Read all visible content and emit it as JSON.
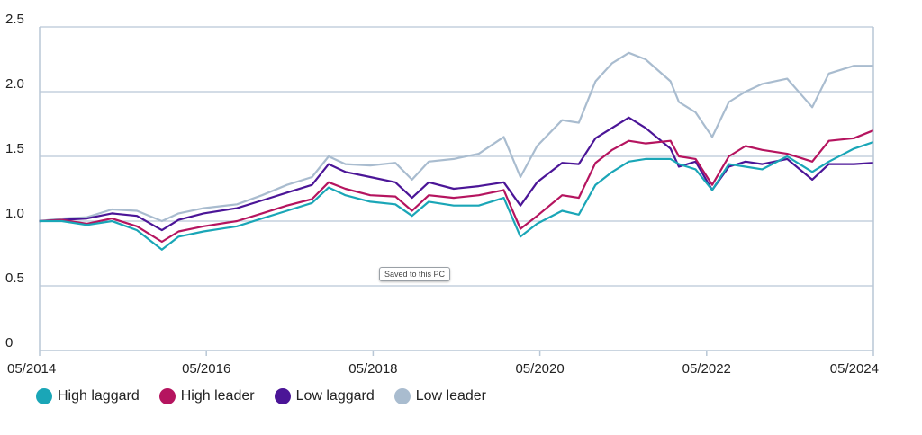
{
  "chart_data": {
    "type": "line",
    "title": "",
    "xlabel": "",
    "ylabel": "",
    "ylim": [
      0,
      2.5
    ],
    "yticks": [
      "0",
      "0.5",
      "1.0",
      "1.5",
      "2.0",
      "2.5"
    ],
    "ytick_values": [
      0,
      0.5,
      1.0,
      1.5,
      2.0,
      2.5
    ],
    "xlim": [
      2014.333,
      2024.333
    ],
    "xticks": [
      "05/2014",
      "05/2016",
      "05/2018",
      "05/2020",
      "05/2022",
      "05/2024"
    ],
    "xtick_values": [
      2014.333,
      2016.333,
      2018.333,
      2020.333,
      2022.333,
      2024.333
    ],
    "grid": "horizontal",
    "legend_position": "bottom-left",
    "series": [
      {
        "name": "Low leader",
        "color": "#a9bccf",
        "points": [
          [
            2014.33,
            1.0
          ],
          [
            2014.6,
            1.02
          ],
          [
            2014.9,
            1.03
          ],
          [
            2015.2,
            1.09
          ],
          [
            2015.5,
            1.08
          ],
          [
            2015.8,
            1.0
          ],
          [
            2016.0,
            1.06
          ],
          [
            2016.3,
            1.1
          ],
          [
            2016.7,
            1.13
          ],
          [
            2017.0,
            1.2
          ],
          [
            2017.3,
            1.28
          ],
          [
            2017.6,
            1.34
          ],
          [
            2017.8,
            1.5
          ],
          [
            2018.0,
            1.44
          ],
          [
            2018.3,
            1.43
          ],
          [
            2018.6,
            1.45
          ],
          [
            2018.8,
            1.32
          ],
          [
            2019.0,
            1.46
          ],
          [
            2019.3,
            1.48
          ],
          [
            2019.6,
            1.52
          ],
          [
            2019.9,
            1.65
          ],
          [
            2020.1,
            1.34
          ],
          [
            2020.3,
            1.58
          ],
          [
            2020.6,
            1.78
          ],
          [
            2020.8,
            1.76
          ],
          [
            2021.0,
            2.08
          ],
          [
            2021.2,
            2.22
          ],
          [
            2021.4,
            2.3
          ],
          [
            2021.6,
            2.25
          ],
          [
            2021.9,
            2.08
          ],
          [
            2022.0,
            1.92
          ],
          [
            2022.2,
            1.84
          ],
          [
            2022.4,
            1.65
          ],
          [
            2022.6,
            1.92
          ],
          [
            2022.8,
            2.0
          ],
          [
            2023.0,
            2.06
          ],
          [
            2023.3,
            2.1
          ],
          [
            2023.6,
            1.88
          ],
          [
            2023.8,
            2.14
          ],
          [
            2024.1,
            2.2
          ],
          [
            2024.33,
            2.2
          ]
        ]
      },
      {
        "name": "Low laggard",
        "color": "#4b1597",
        "points": [
          [
            2014.33,
            1.0
          ],
          [
            2014.6,
            1.01
          ],
          [
            2014.9,
            1.02
          ],
          [
            2015.2,
            1.06
          ],
          [
            2015.5,
            1.04
          ],
          [
            2015.8,
            0.93
          ],
          [
            2016.0,
            1.01
          ],
          [
            2016.3,
            1.06
          ],
          [
            2016.7,
            1.1
          ],
          [
            2017.0,
            1.16
          ],
          [
            2017.3,
            1.22
          ],
          [
            2017.6,
            1.28
          ],
          [
            2017.8,
            1.44
          ],
          [
            2018.0,
            1.38
          ],
          [
            2018.3,
            1.34
          ],
          [
            2018.6,
            1.3
          ],
          [
            2018.8,
            1.18
          ],
          [
            2019.0,
            1.3
          ],
          [
            2019.3,
            1.25
          ],
          [
            2019.6,
            1.27
          ],
          [
            2019.9,
            1.3
          ],
          [
            2020.1,
            1.12
          ],
          [
            2020.3,
            1.3
          ],
          [
            2020.6,
            1.45
          ],
          [
            2020.8,
            1.44
          ],
          [
            2021.0,
            1.64
          ],
          [
            2021.2,
            1.72
          ],
          [
            2021.4,
            1.8
          ],
          [
            2021.6,
            1.72
          ],
          [
            2021.9,
            1.56
          ],
          [
            2022.0,
            1.42
          ],
          [
            2022.2,
            1.46
          ],
          [
            2022.4,
            1.24
          ],
          [
            2022.6,
            1.42
          ],
          [
            2022.8,
            1.46
          ],
          [
            2023.0,
            1.44
          ],
          [
            2023.3,
            1.48
          ],
          [
            2023.6,
            1.32
          ],
          [
            2023.8,
            1.44
          ],
          [
            2024.1,
            1.44
          ],
          [
            2024.33,
            1.45
          ]
        ]
      },
      {
        "name": "High leader",
        "color": "#b5145f",
        "points": [
          [
            2014.33,
            1.0
          ],
          [
            2014.6,
            1.01
          ],
          [
            2014.9,
            0.98
          ],
          [
            2015.2,
            1.02
          ],
          [
            2015.5,
            0.96
          ],
          [
            2015.8,
            0.84
          ],
          [
            2016.0,
            0.92
          ],
          [
            2016.3,
            0.96
          ],
          [
            2016.7,
            1.0
          ],
          [
            2017.0,
            1.06
          ],
          [
            2017.3,
            1.12
          ],
          [
            2017.6,
            1.17
          ],
          [
            2017.8,
            1.3
          ],
          [
            2018.0,
            1.25
          ],
          [
            2018.3,
            1.2
          ],
          [
            2018.6,
            1.19
          ],
          [
            2018.8,
            1.08
          ],
          [
            2019.0,
            1.2
          ],
          [
            2019.3,
            1.18
          ],
          [
            2019.6,
            1.2
          ],
          [
            2019.9,
            1.24
          ],
          [
            2020.1,
            0.94
          ],
          [
            2020.3,
            1.04
          ],
          [
            2020.6,
            1.2
          ],
          [
            2020.8,
            1.18
          ],
          [
            2021.0,
            1.45
          ],
          [
            2021.2,
            1.55
          ],
          [
            2021.4,
            1.62
          ],
          [
            2021.6,
            1.6
          ],
          [
            2021.9,
            1.62
          ],
          [
            2022.0,
            1.5
          ],
          [
            2022.2,
            1.48
          ],
          [
            2022.4,
            1.28
          ],
          [
            2022.6,
            1.5
          ],
          [
            2022.8,
            1.58
          ],
          [
            2023.0,
            1.55
          ],
          [
            2023.3,
            1.52
          ],
          [
            2023.6,
            1.46
          ],
          [
            2023.8,
            1.62
          ],
          [
            2024.1,
            1.64
          ],
          [
            2024.33,
            1.7
          ]
        ]
      },
      {
        "name": "High laggard",
        "color": "#1aa6b7",
        "points": [
          [
            2014.33,
            1.0
          ],
          [
            2014.6,
            1.0
          ],
          [
            2014.9,
            0.97
          ],
          [
            2015.2,
            1.0
          ],
          [
            2015.5,
            0.93
          ],
          [
            2015.8,
            0.78
          ],
          [
            2016.0,
            0.88
          ],
          [
            2016.3,
            0.92
          ],
          [
            2016.7,
            0.96
          ],
          [
            2017.0,
            1.02
          ],
          [
            2017.3,
            1.08
          ],
          [
            2017.6,
            1.14
          ],
          [
            2017.8,
            1.26
          ],
          [
            2018.0,
            1.2
          ],
          [
            2018.3,
            1.15
          ],
          [
            2018.6,
            1.13
          ],
          [
            2018.8,
            1.04
          ],
          [
            2019.0,
            1.15
          ],
          [
            2019.3,
            1.12
          ],
          [
            2019.6,
            1.12
          ],
          [
            2019.9,
            1.18
          ],
          [
            2020.1,
            0.88
          ],
          [
            2020.3,
            0.98
          ],
          [
            2020.6,
            1.08
          ],
          [
            2020.8,
            1.05
          ],
          [
            2021.0,
            1.28
          ],
          [
            2021.2,
            1.38
          ],
          [
            2021.4,
            1.46
          ],
          [
            2021.6,
            1.48
          ],
          [
            2021.9,
            1.48
          ],
          [
            2022.0,
            1.44
          ],
          [
            2022.2,
            1.4
          ],
          [
            2022.4,
            1.24
          ],
          [
            2022.6,
            1.44
          ],
          [
            2022.8,
            1.42
          ],
          [
            2023.0,
            1.4
          ],
          [
            2023.3,
            1.5
          ],
          [
            2023.6,
            1.38
          ],
          [
            2023.8,
            1.46
          ],
          [
            2024.1,
            1.56
          ],
          [
            2024.33,
            1.61
          ]
        ]
      }
    ],
    "legend": [
      {
        "name": "High laggard",
        "color": "#1aa6b7"
      },
      {
        "name": "High leader",
        "color": "#b5145f"
      },
      {
        "name": "Low laggard",
        "color": "#4b1597"
      },
      {
        "name": "Low leader",
        "color": "#a9bccf"
      }
    ]
  },
  "tooltip": {
    "text": "Saved to this PC"
  },
  "colors": {
    "grid": "#b9c7d6",
    "axis": "#b9c7d6"
  }
}
